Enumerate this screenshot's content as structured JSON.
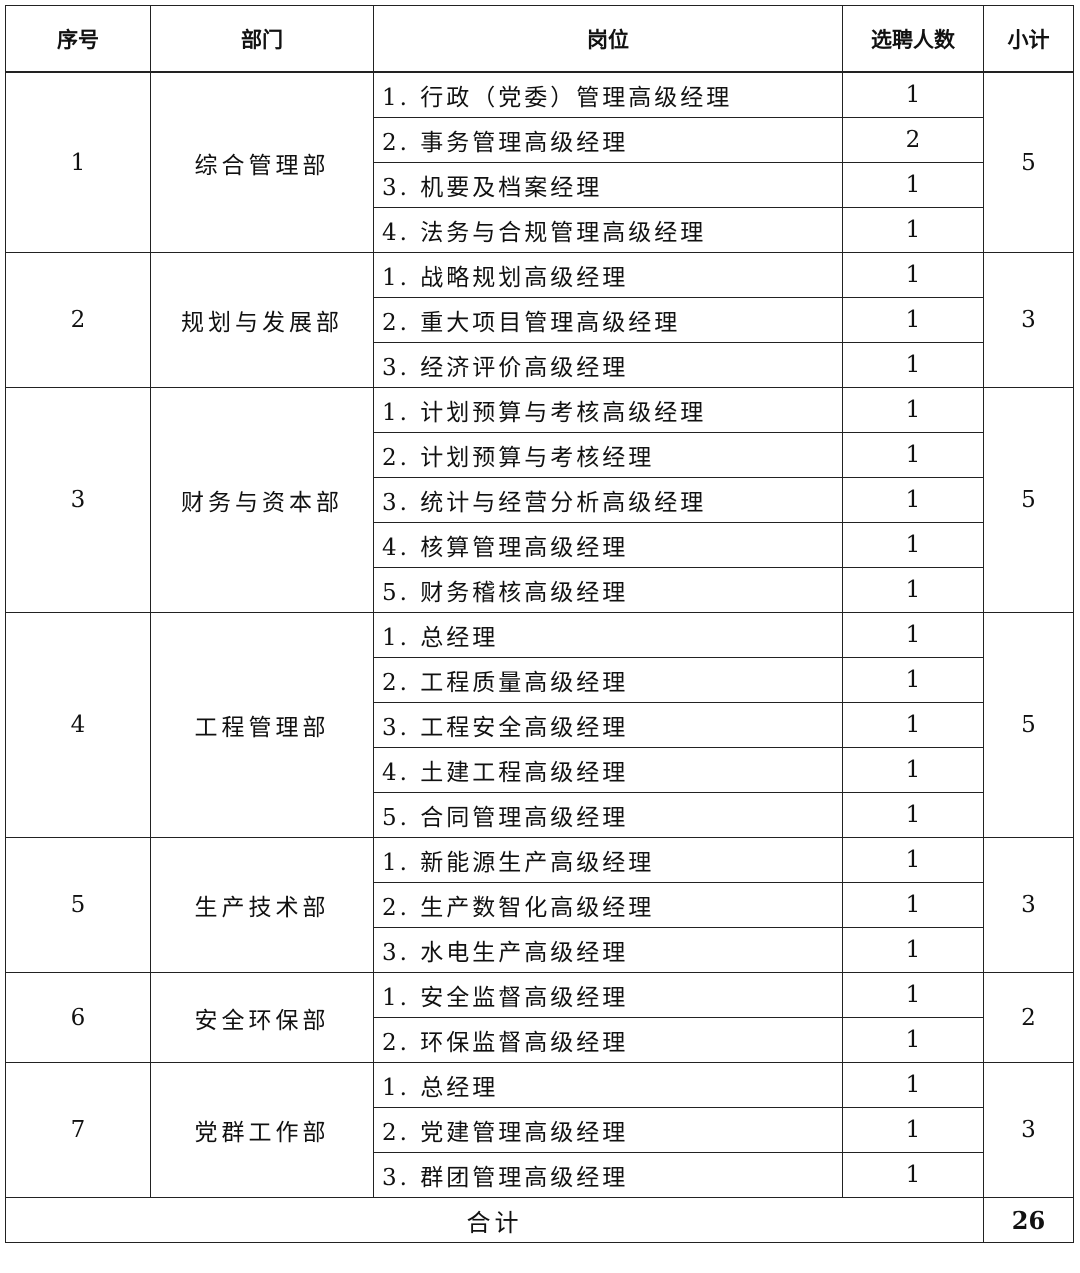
{
  "headers": [
    "序号",
    "部门",
    "岗位",
    "选聘人数",
    "小计"
  ],
  "departments": [
    {
      "no": "1",
      "name": "综合管理部",
      "subtotal": "5",
      "positions": [
        {
          "title": "1. 行政（党委）管理高级经理",
          "count": "1"
        },
        {
          "title": "2. 事务管理高级经理",
          "count": "2"
        },
        {
          "title": "3. 机要及档案经理",
          "count": "1"
        },
        {
          "title": "4. 法务与合规管理高级经理",
          "count": "1"
        }
      ]
    },
    {
      "no": "2",
      "name": "规划与发展部",
      "subtotal": "3",
      "positions": [
        {
          "title": "1. 战略规划高级经理",
          "count": "1"
        },
        {
          "title": "2. 重大项目管理高级经理",
          "count": "1"
        },
        {
          "title": "3. 经济评价高级经理",
          "count": "1"
        }
      ]
    },
    {
      "no": "3",
      "name": "财务与资本部",
      "subtotal": "5",
      "positions": [
        {
          "title": "1. 计划预算与考核高级经理",
          "count": "1"
        },
        {
          "title": "2. 计划预算与考核经理",
          "count": "1"
        },
        {
          "title": "3. 统计与经营分析高级经理",
          "count": "1"
        },
        {
          "title": "4. 核算管理高级经理",
          "count": "1"
        },
        {
          "title": "5. 财务稽核高级经理",
          "count": "1"
        }
      ]
    },
    {
      "no": "4",
      "name": "工程管理部",
      "subtotal": "5",
      "positions": [
        {
          "title": "1. 总经理",
          "count": "1"
        },
        {
          "title": "2. 工程质量高级经理",
          "count": "1"
        },
        {
          "title": "3. 工程安全高级经理",
          "count": "1"
        },
        {
          "title": "4. 土建工程高级经理",
          "count": "1"
        },
        {
          "title": "5. 合同管理高级经理",
          "count": "1"
        }
      ]
    },
    {
      "no": "5",
      "name": "生产技术部",
      "subtotal": "3",
      "positions": [
        {
          "title": "1. 新能源生产高级经理",
          "count": "1"
        },
        {
          "title": "2. 生产数智化高级经理",
          "count": "1"
        },
        {
          "title": "3. 水电生产高级经理",
          "count": "1"
        }
      ]
    },
    {
      "no": "6",
      "name": "安全环保部",
      "subtotal": "2",
      "positions": [
        {
          "title": "1. 安全监督高级经理",
          "count": "1"
        },
        {
          "title": "2. 环保监督高级经理",
          "count": "1"
        }
      ]
    },
    {
      "no": "7",
      "name": "党群工作部",
      "subtotal": "3",
      "positions": [
        {
          "title": "1. 总经理",
          "count": "1"
        },
        {
          "title": "2. 党建管理高级经理",
          "count": "1"
        },
        {
          "title": "3. 群团管理高级经理",
          "count": "1"
        }
      ]
    }
  ],
  "total": {
    "label": "合计",
    "value": "26"
  }
}
